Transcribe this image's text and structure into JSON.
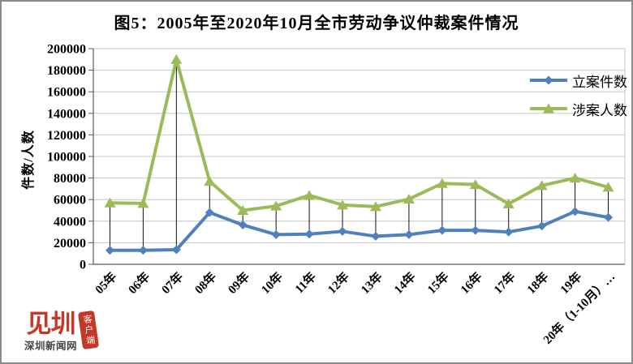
{
  "title": "图5：2005年至2020年10月全市劳动争议仲裁案件情况",
  "chart_data": {
    "type": "line",
    "categories": [
      "05年",
      "06年",
      "07年",
      "08年",
      "09年",
      "10年",
      "11年",
      "12年",
      "13年",
      "14年",
      "15年",
      "16年",
      "17年",
      "18年",
      "19年",
      "20年（1-10月）…"
    ],
    "series": [
      {
        "name": "立案件数",
        "marker": "diamond",
        "color": "#4F81BD",
        "values": [
          13000,
          13000,
          13500,
          48000,
          36500,
          27500,
          28000,
          30500,
          26000,
          27500,
          31500,
          31500,
          30000,
          35500,
          49000,
          43500
        ]
      },
      {
        "name": "涉案人数",
        "marker": "triangle",
        "color": "#9BBB59",
        "values": [
          57000,
          56500,
          190000,
          77000,
          50000,
          54000,
          64000,
          55000,
          53500,
          60500,
          75000,
          74000,
          56000,
          73000,
          80000,
          71500
        ]
      }
    ],
    "xlabel": "",
    "ylabel": "件数/人数",
    "ylim": [
      0,
      200000
    ],
    "ytick_step": 20000,
    "yticks": [
      0,
      20000,
      40000,
      60000,
      80000,
      100000,
      120000,
      140000,
      160000,
      180000,
      200000
    ],
    "grid": "horizontal",
    "legend_position": "inside-top-right",
    "high_low_lines": true,
    "gridline_color": "#c6c6c6",
    "axis_color": "#595959",
    "high_low_line_color": "#111111"
  },
  "watermark": {
    "logo_glyphs": "见圳",
    "brand": "深圳新闻网",
    "badge": "客户端"
  }
}
